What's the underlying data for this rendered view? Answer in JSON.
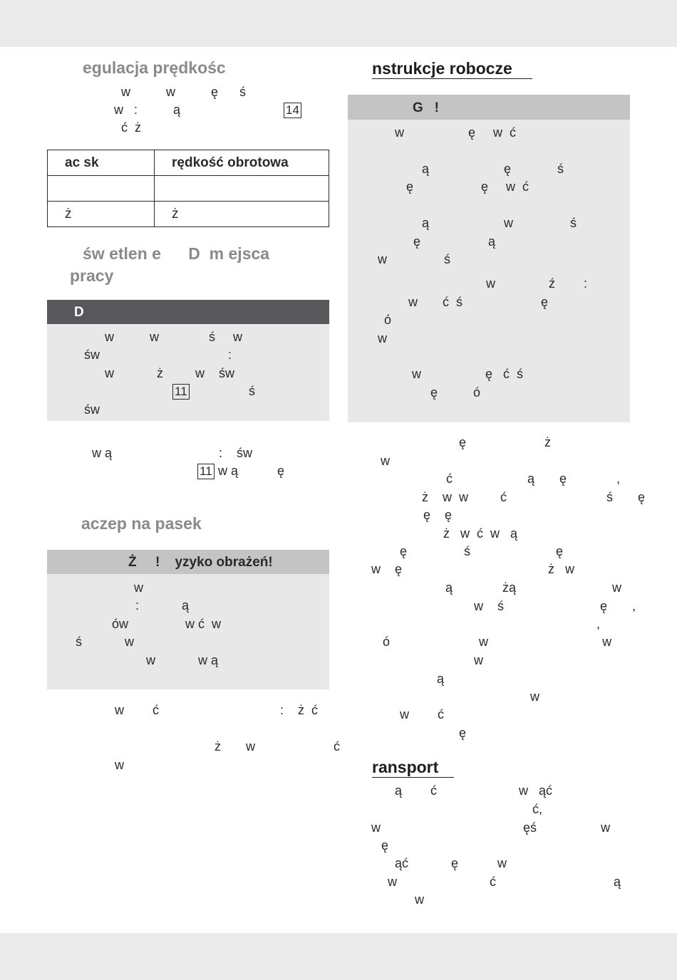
{
  "left": {
    "section1": {
      "title": "egulacja prędkośc",
      "lines": [
        "w          w          ę      ś",
        "w   :          ą",
        "ć  ż"
      ],
      "ref": "14"
    },
    "table": {
      "headers": [
        "ac sk",
        "rędkość obrotowa"
      ],
      "rows": [
        [
          "",
          ""
        ],
        [
          "ż",
          "ż"
        ]
      ]
    },
    "section2": {
      "title_line1": "św etlen e      D  m ejsca",
      "title_line2": "pracy"
    },
    "box_led": {
      "header": "D",
      "lines": [
        "w          w              ś     w",
        "św                                    :",
        "w            ż         w    św",
        "                 ś",
        "św"
      ],
      "ref": "11"
    },
    "after_led": {
      "lines": [
        "w ą                              :    św"
      ],
      "line2_tail": "w ą           ę",
      "ref": "11"
    },
    "section3": {
      "title": "aczep na pasek"
    },
    "box_belt": {
      "header": "Ż     !    yzyko obrażeń!",
      "lines": [
        "w",
        ":            ą",
        "ów                w ć  w",
        "ś            w",
        "w            w ą"
      ]
    },
    "after_belt": {
      "lines": [
        "w        ć                                  :    ż  ć",
        "ż       w                      ć",
        "w"
      ]
    }
  },
  "right": {
    "section1": {
      "title": "nstrukcje robocze"
    },
    "box_uwaga": {
      "header": "G   !",
      "lines": [
        "w                  ę     w  ć",
        "ą                     ę             ś",
        "ę                   ę     w  ć",
        "ą                     w                ś",
        "ę                   ą",
        "w                ś",
        "w               ź        :",
        "w       ć  ś                      ę",
        "ó",
        "w",
        "w                  ę   ć  ś",
        "ę          ó"
      ]
    },
    "body_lines": [
      "ę                      ż",
      "w",
      "ć                     ą       ę              ,",
      "ż    w  w         ć                            ś       ę",
      "ę    ę",
      "ż   w  ć  w   ą",
      "ę                ś                        ę",
      "w    ę                                         ż   w",
      "ą              żą                           w",
      "w    ś                           ę       ,",
      ",",
      "ó                         w                                w",
      "w",
      "ą",
      "w",
      "w        ć",
      "ę"
    ],
    "section2": {
      "title": "ransport"
    },
    "transport_lines": [
      "ą        ć                       w   ąć",
      "ć,",
      "w                                        ęś                  w",
      "ę",
      "ąć            ę           w",
      "w                          ć                                 ą",
      "w"
    ]
  }
}
